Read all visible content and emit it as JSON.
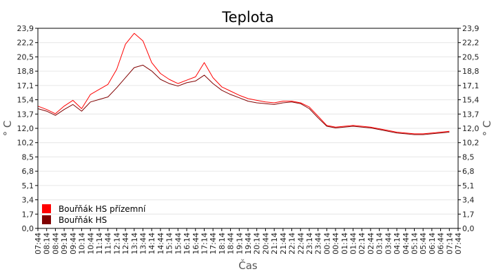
{
  "chart_data": {
    "type": "line",
    "title": "Teplota",
    "xlabel": "Čas",
    "ylabel_left": "° C",
    "ylabel_right": "° C",
    "ylim": [
      0,
      23.9
    ],
    "y_ticks": [
      "0,0",
      "1,7",
      "3,4",
      "5,1",
      "6,8",
      "8,5",
      "10,2",
      "12,0",
      "13,7",
      "15,4",
      "17,1",
      "18,8",
      "20,5",
      "22,2",
      "23,9"
    ],
    "x_ticks": [
      "07:44",
      "08:14",
      "08:44",
      "09:14",
      "09:44",
      "10:14",
      "10:44",
      "11:14",
      "11:44",
      "12:14",
      "12:44",
      "13:14",
      "13:44",
      "14:14",
      "14:44",
      "15:14",
      "15:44",
      "16:14",
      "16:44",
      "17:14",
      "17:44",
      "18:14",
      "18:44",
      "19:14",
      "19:44",
      "20:14",
      "20:44",
      "21:14",
      "21:44",
      "22:14",
      "22:44",
      "23:14",
      "23:44",
      "00:14",
      "00:44",
      "01:14",
      "01:44",
      "02:14",
      "02:44",
      "03:14",
      "03:44",
      "04:14",
      "04:44",
      "05:14",
      "05:44",
      "06:14",
      "06:44",
      "07:14",
      "07:44"
    ],
    "grid": true,
    "legend_position": "bottom-left",
    "series": [
      {
        "name": "Bouřňák HS přízemní",
        "color": "#ff0000",
        "points": [
          [
            0,
            14.6
          ],
          [
            1,
            14.2
          ],
          [
            2,
            13.7
          ],
          [
            3,
            14.6
          ],
          [
            4,
            15.3
          ],
          [
            5,
            14.3
          ],
          [
            6,
            16.0
          ],
          [
            7,
            16.6
          ],
          [
            8,
            17.2
          ],
          [
            9,
            19.0
          ],
          [
            10,
            22.0
          ],
          [
            11,
            23.3
          ],
          [
            12,
            22.4
          ],
          [
            13,
            19.8
          ],
          [
            14,
            18.5
          ],
          [
            15,
            17.8
          ],
          [
            16,
            17.3
          ],
          [
            17,
            17.7
          ],
          [
            18,
            18.1
          ],
          [
            19,
            19.8
          ],
          [
            20,
            18.0
          ],
          [
            21,
            16.9
          ],
          [
            22,
            16.4
          ],
          [
            23,
            15.9
          ],
          [
            24,
            15.5
          ],
          [
            25,
            15.3
          ],
          [
            26,
            15.1
          ],
          [
            27,
            15.0
          ],
          [
            28,
            15.2
          ],
          [
            29,
            15.2
          ],
          [
            30,
            15.0
          ],
          [
            31,
            14.5
          ],
          [
            32,
            13.4
          ],
          [
            33,
            12.3
          ],
          [
            34,
            12.1
          ],
          [
            35,
            12.2
          ],
          [
            36,
            12.3
          ],
          [
            37,
            12.2
          ],
          [
            38,
            12.1
          ],
          [
            39,
            11.9
          ],
          [
            40,
            11.7
          ],
          [
            41,
            11.5
          ],
          [
            42,
            11.4
          ],
          [
            43,
            11.3
          ],
          [
            44,
            11.3
          ],
          [
            45,
            11.4
          ],
          [
            46,
            11.5
          ],
          [
            47,
            11.6
          ]
        ]
      },
      {
        "name": "Bouřňák HS",
        "color": "#800000",
        "points": [
          [
            0,
            14.3
          ],
          [
            1,
            14.0
          ],
          [
            2,
            13.5
          ],
          [
            3,
            14.2
          ],
          [
            4,
            14.8
          ],
          [
            5,
            14.0
          ],
          [
            6,
            15.1
          ],
          [
            7,
            15.4
          ],
          [
            8,
            15.7
          ],
          [
            9,
            16.8
          ],
          [
            10,
            18.0
          ],
          [
            11,
            19.2
          ],
          [
            12,
            19.5
          ],
          [
            13,
            18.8
          ],
          [
            14,
            17.8
          ],
          [
            15,
            17.3
          ],
          [
            16,
            17.0
          ],
          [
            17,
            17.4
          ],
          [
            18,
            17.6
          ],
          [
            19,
            18.3
          ],
          [
            20,
            17.3
          ],
          [
            21,
            16.5
          ],
          [
            22,
            16.0
          ],
          [
            23,
            15.6
          ],
          [
            24,
            15.2
          ],
          [
            25,
            15.0
          ],
          [
            26,
            14.9
          ],
          [
            27,
            14.8
          ],
          [
            28,
            15.0
          ],
          [
            29,
            15.1
          ],
          [
            30,
            14.9
          ],
          [
            31,
            14.3
          ],
          [
            32,
            13.2
          ],
          [
            33,
            12.2
          ],
          [
            34,
            12.0
          ],
          [
            35,
            12.1
          ],
          [
            36,
            12.2
          ],
          [
            37,
            12.1
          ],
          [
            38,
            12.0
          ],
          [
            39,
            11.8
          ],
          [
            40,
            11.6
          ],
          [
            41,
            11.4
          ],
          [
            42,
            11.3
          ],
          [
            43,
            11.2
          ],
          [
            44,
            11.2
          ],
          [
            45,
            11.3
          ],
          [
            46,
            11.4
          ],
          [
            47,
            11.5
          ]
        ]
      }
    ]
  }
}
